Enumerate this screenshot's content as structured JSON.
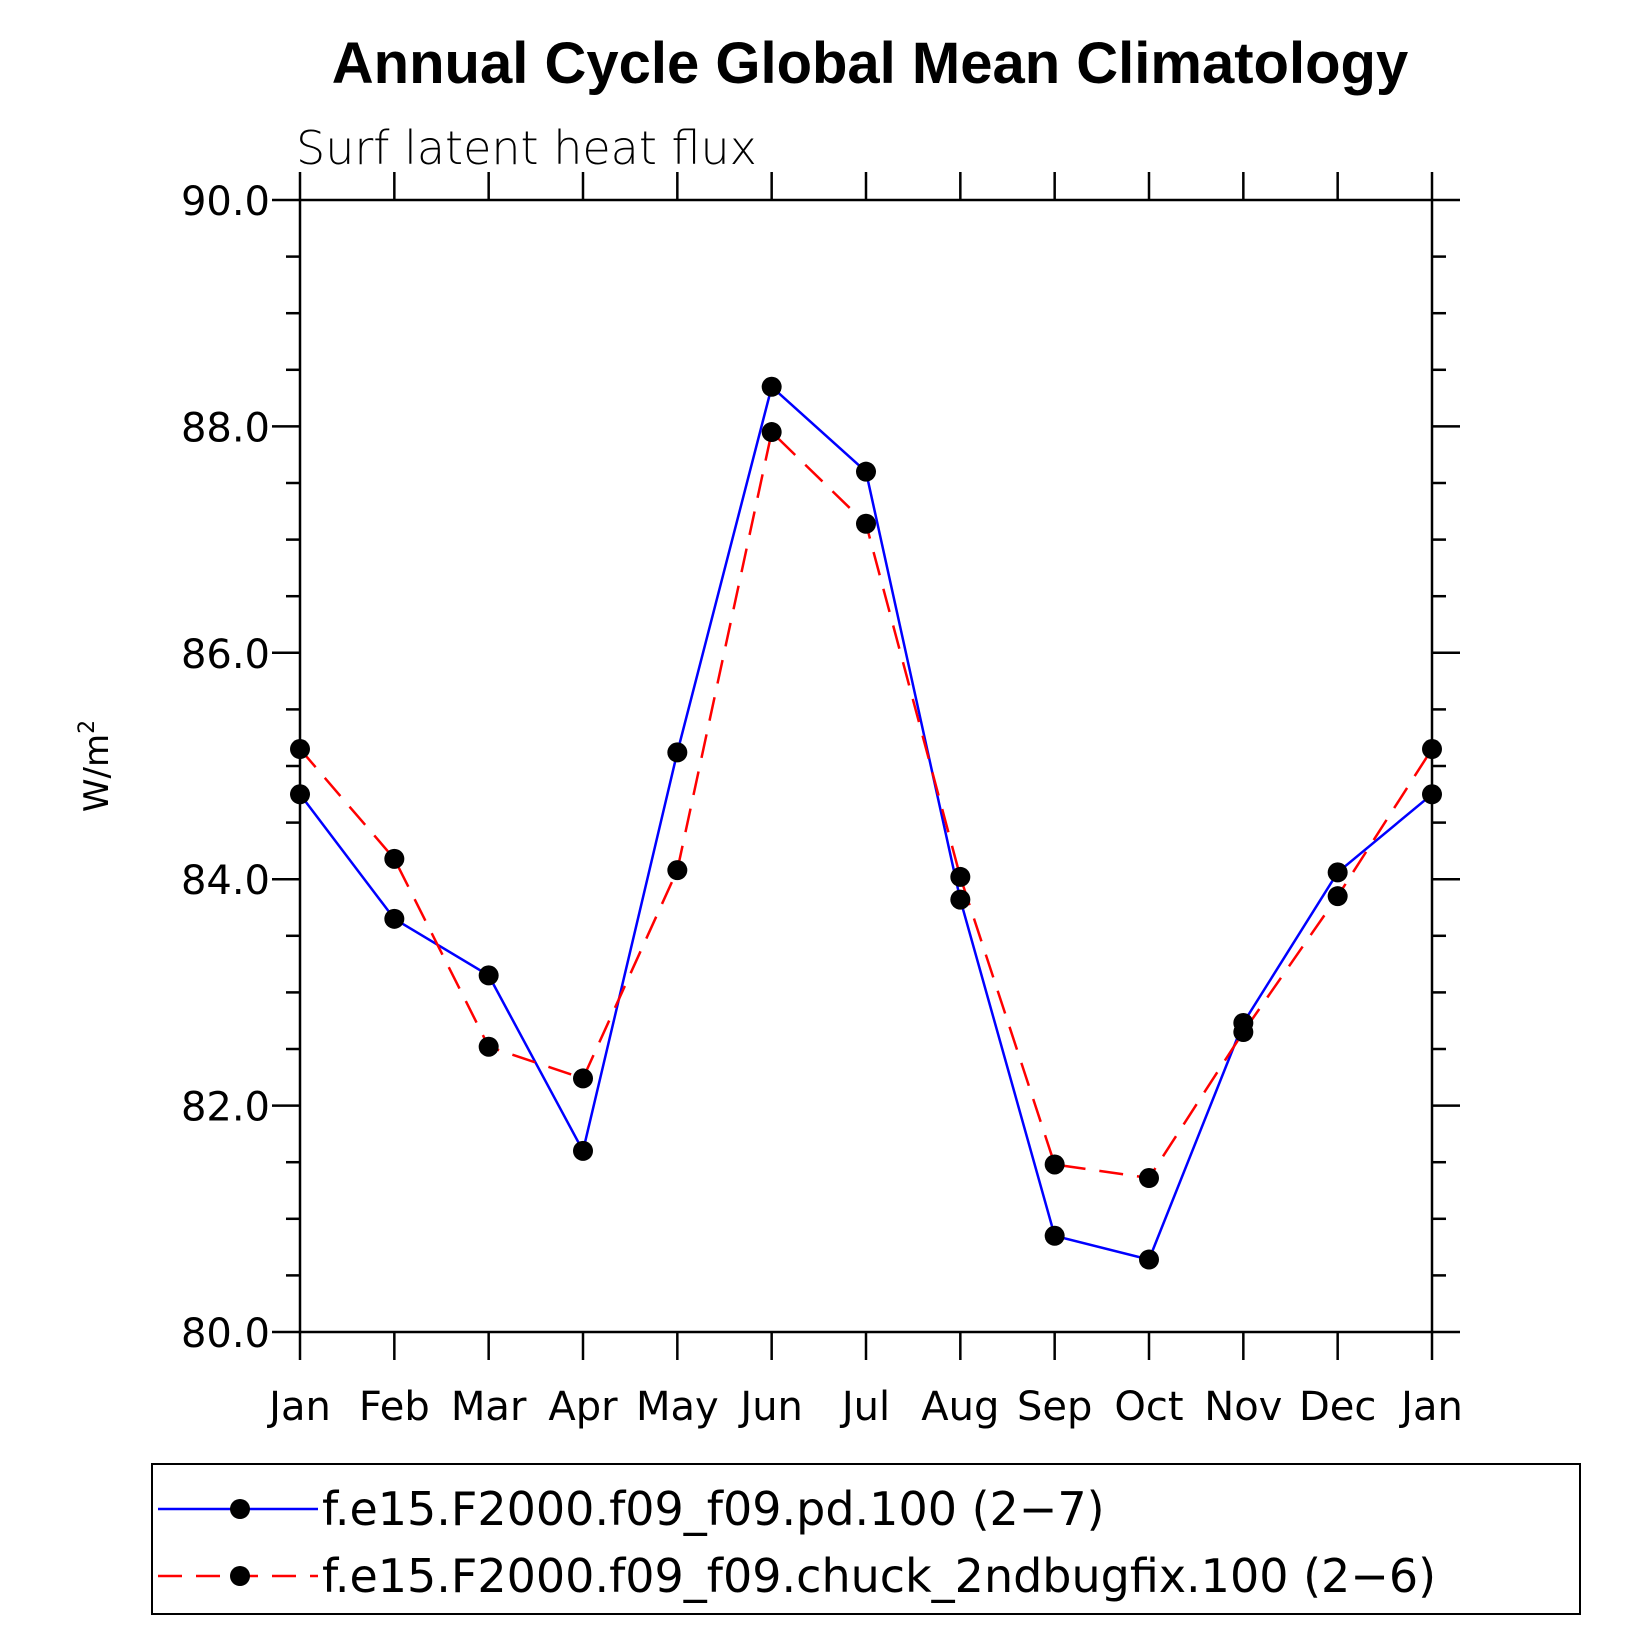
{
  "chart_data": {
    "type": "line",
    "title": "Annual Cycle Global Mean Climatology",
    "subtitle": "Surf latent heat flux",
    "ylabel_base": "W/m",
    "ylabel_superscript": "2",
    "xlabel": "",
    "categories": [
      "Jan",
      "Feb",
      "Mar",
      "Apr",
      "May",
      "Jun",
      "Jul",
      "Aug",
      "Sep",
      "Oct",
      "Nov",
      "Dec",
      "Jan"
    ],
    "ylim": [
      80.0,
      90.0
    ],
    "yticks": [
      "80.0",
      "82.0",
      "84.0",
      "86.0",
      "88.0",
      "90.0"
    ],
    "y_minor_step": 0.5,
    "series": [
      {
        "name": "f.e15.F2000.f09_f09.pd.100 (2−7)",
        "color": "#0000ff",
        "dash": "solid",
        "values": [
          84.75,
          83.65,
          83.15,
          81.6,
          85.12,
          88.35,
          87.6,
          83.82,
          80.85,
          80.64,
          82.73,
          84.06,
          84.75
        ]
      },
      {
        "name": "f.e15.F2000.f09_f09.chuck_2ndbugfix.100 (2−6)",
        "color": "#ff0000",
        "dash": "dashed",
        "values": [
          85.15,
          84.18,
          82.52,
          82.24,
          84.08,
          87.95,
          87.14,
          84.02,
          81.48,
          81.36,
          82.65,
          83.85,
          85.15
        ]
      }
    ],
    "marker": "filled-circle",
    "marker_color": "#000000",
    "grid": false,
    "legend_position": "bottom"
  }
}
